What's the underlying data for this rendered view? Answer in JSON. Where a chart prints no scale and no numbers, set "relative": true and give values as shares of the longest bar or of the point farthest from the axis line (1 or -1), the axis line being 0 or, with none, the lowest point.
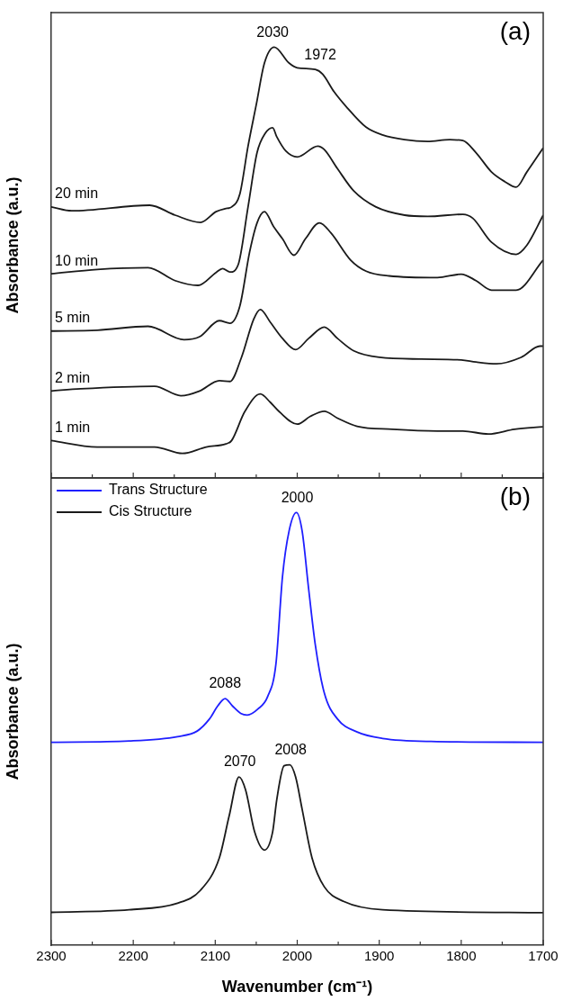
{
  "chart_data": [
    {
      "type": "line",
      "relative": true,
      "ylabel": "Absorbance (a.u.)",
      "xlim": [
        2300,
        1700
      ],
      "xticks": [
        2300,
        {
          "value": 2250,
          "label": null
        },
        2200,
        {
          "value": 2150,
          "label": null
        },
        2100,
        {
          "value": 2050,
          "label": null
        },
        2000,
        {
          "value": 1950,
          "label": null
        },
        1900,
        {
          "value": 1850,
          "label": null
        },
        1800,
        {
          "value": 1750,
          "label": null
        },
        1700
      ],
      "tick_labels": false,
      "grid": false,
      "legend": false,
      "marker": "none",
      "line_style": "solid",
      "annotations": [
        "(a)",
        {
          "text": "2030",
          "x": 2030,
          "y": 1.0
        },
        {
          "text": "1972",
          "x": 1972,
          "y": 0.948
        }
      ],
      "series": [
        {
          "name": "20 min",
          "color": "#1a1a1a",
          "x": [
            2300,
            2275,
            2180,
            2149,
            2118,
            2099,
            2088,
            2080,
            2070,
            2060,
            2050,
            2040,
            2028,
            2010,
            2000,
            1978,
            1969,
            1955,
            1939,
            1916,
            1896,
            1869,
            1841,
            1814,
            1798,
            1782,
            1763,
            1747,
            1733,
            1720,
            1700
          ],
          "values": [
            0.629,
            0.62,
            0.633,
            0.61,
            0.593,
            0.618,
            0.625,
            0.629,
            0.659,
            0.77,
            0.866,
            0.963,
            1.0,
            0.963,
            0.952,
            0.948,
            0.937,
            0.896,
            0.859,
            0.814,
            0.796,
            0.785,
            0.781,
            0.785,
            0.783,
            0.755,
            0.71,
            0.688,
            0.675,
            0.71,
            0.766
          ]
        },
        {
          "name": "10 min",
          "color": "#1a1a1a",
          "x": [
            2300,
            2244,
            2182,
            2149,
            2121,
            2099,
            2091,
            2082,
            2072,
            2060,
            2049,
            2039,
            2030,
            2025,
            2014,
            2000,
            1975,
            1967,
            1951,
            1931,
            1904,
            1869,
            1841,
            1798,
            1786,
            1763,
            1733,
            1720,
            1700
          ],
          "values": [
            0.474,
            0.484,
            0.488,
            0.458,
            0.447,
            0.477,
            0.486,
            0.478,
            0.495,
            0.629,
            0.755,
            0.8,
            0.813,
            0.792,
            0.759,
            0.745,
            0.77,
            0.762,
            0.718,
            0.666,
            0.629,
            0.61,
            0.607,
            0.612,
            0.603,
            0.547,
            0.519,
            0.54,
            0.61
          ]
        },
        {
          "name": "5 min",
          "color": "#1a1a1a",
          "x": [
            2300,
            2244,
            2182,
            2138,
            2119,
            2095,
            2082,
            2070,
            2058,
            2049,
            2040,
            2029,
            2018,
            2004,
            1990,
            1973,
            1959,
            1935,
            1916,
            1888,
            1829,
            1800,
            1782,
            1763,
            1733,
            1700
          ],
          "values": [
            0.341,
            0.343,
            0.352,
            0.321,
            0.328,
            0.365,
            0.359,
            0.399,
            0.525,
            0.592,
            0.618,
            0.584,
            0.555,
            0.517,
            0.555,
            0.592,
            0.569,
            0.506,
            0.48,
            0.469,
            0.465,
            0.473,
            0.458,
            0.436,
            0.436,
            0.506
          ]
        },
        {
          "name": "2 min",
          "color": "#1a1a1a",
          "x": [
            2300,
            2264,
            2174,
            2142,
            2119,
            2095,
            2082,
            2068,
            2053,
            2045,
            2033,
            2018,
            2002,
            1986,
            1967,
            1951,
            1931,
            1900,
            1849,
            1800,
            1782,
            1757,
            1727,
            1704,
            1700
          ],
          "values": [
            0.202,
            0.207,
            0.213,
            0.191,
            0.202,
            0.226,
            0.224,
            0.28,
            0.369,
            0.391,
            0.362,
            0.324,
            0.298,
            0.324,
            0.35,
            0.324,
            0.295,
            0.28,
            0.276,
            0.274,
            0.269,
            0.265,
            0.28,
            0.306,
            0.306
          ]
        },
        {
          "name": "1 min",
          "color": "#1a1a1a",
          "x": [
            2300,
            2244,
            2174,
            2140,
            2111,
            2087,
            2080,
            2064,
            2045,
            2033,
            2022,
            2000,
            1984,
            1967,
            1951,
            1927,
            1884,
            1829,
            1798,
            1767,
            1735,
            1700
          ],
          "values": [
            0.087,
            0.072,
            0.072,
            0.057,
            0.072,
            0.079,
            0.087,
            0.154,
            0.195,
            0.176,
            0.154,
            0.125,
            0.143,
            0.155,
            0.139,
            0.12,
            0.113,
            0.109,
            0.109,
            0.102,
            0.113,
            0.119
          ]
        }
      ]
    },
    {
      "type": "line",
      "relative": true,
      "ylabel": "Absorbance (a.u.)",
      "xlabel": "Wavenumber (cm⁻¹)",
      "xlim": [
        2300,
        1700
      ],
      "xticks": [
        2300,
        {
          "value": 2250,
          "label": null
        },
        2200,
        {
          "value": 2150,
          "label": null
        },
        2100,
        {
          "value": 2050,
          "label": null
        },
        2000,
        {
          "value": 1950,
          "label": null
        },
        1900,
        {
          "value": 1850,
          "label": null
        },
        1800,
        {
          "value": 1750,
          "label": null
        },
        1700
      ],
      "tick_labels": "x",
      "grid": false,
      "legend": "top left",
      "marker": "none",
      "line_style": "solid",
      "annotations": [
        "(b)",
        {
          "text": "2088",
          "x": 2088,
          "y": 0.57
        },
        {
          "text": "2000",
          "x": 2000,
          "y": 1.0
        },
        {
          "text": "2070",
          "x": 2070,
          "y": 0.389
        },
        {
          "text": "2008",
          "x": 2008,
          "y": 0.417
        }
      ],
      "series": [
        {
          "name": "Trans Structure",
          "color": "#1f1fff",
          "x": [
            2300,
            2205,
            2146,
            2122,
            2107,
            2097,
            2088,
            2079,
            2069,
            2061,
            2048,
            2036,
            2026,
            2018,
            2010,
            2001,
            1994,
            1986,
            1978,
            1967,
            1951,
            1927,
            1896,
            1837,
            1700
          ],
          "values": [
            0.469,
            0.472,
            0.482,
            0.495,
            0.523,
            0.553,
            0.57,
            0.553,
            0.536,
            0.532,
            0.546,
            0.575,
            0.65,
            0.852,
            0.957,
            1.0,
            0.957,
            0.822,
            0.695,
            0.583,
            0.523,
            0.493,
            0.478,
            0.471,
            0.469
          ]
        },
        {
          "name": "Cis Structure",
          "color": "#1a1a1a",
          "x": [
            2300,
            2205,
            2146,
            2118,
            2095,
            2083,
            2071,
            2063,
            2052,
            2040,
            2030,
            2025,
            2016,
            2009,
            2002,
            1994,
            1982,
            1967,
            1943,
            1896,
            1700
          ],
          "values": [
            0.076,
            0.082,
            0.097,
            0.127,
            0.202,
            0.299,
            0.389,
            0.359,
            0.262,
            0.22,
            0.262,
            0.336,
            0.415,
            0.417,
            0.389,
            0.314,
            0.202,
            0.135,
            0.101,
            0.082,
            0.075
          ]
        }
      ]
    }
  ]
}
